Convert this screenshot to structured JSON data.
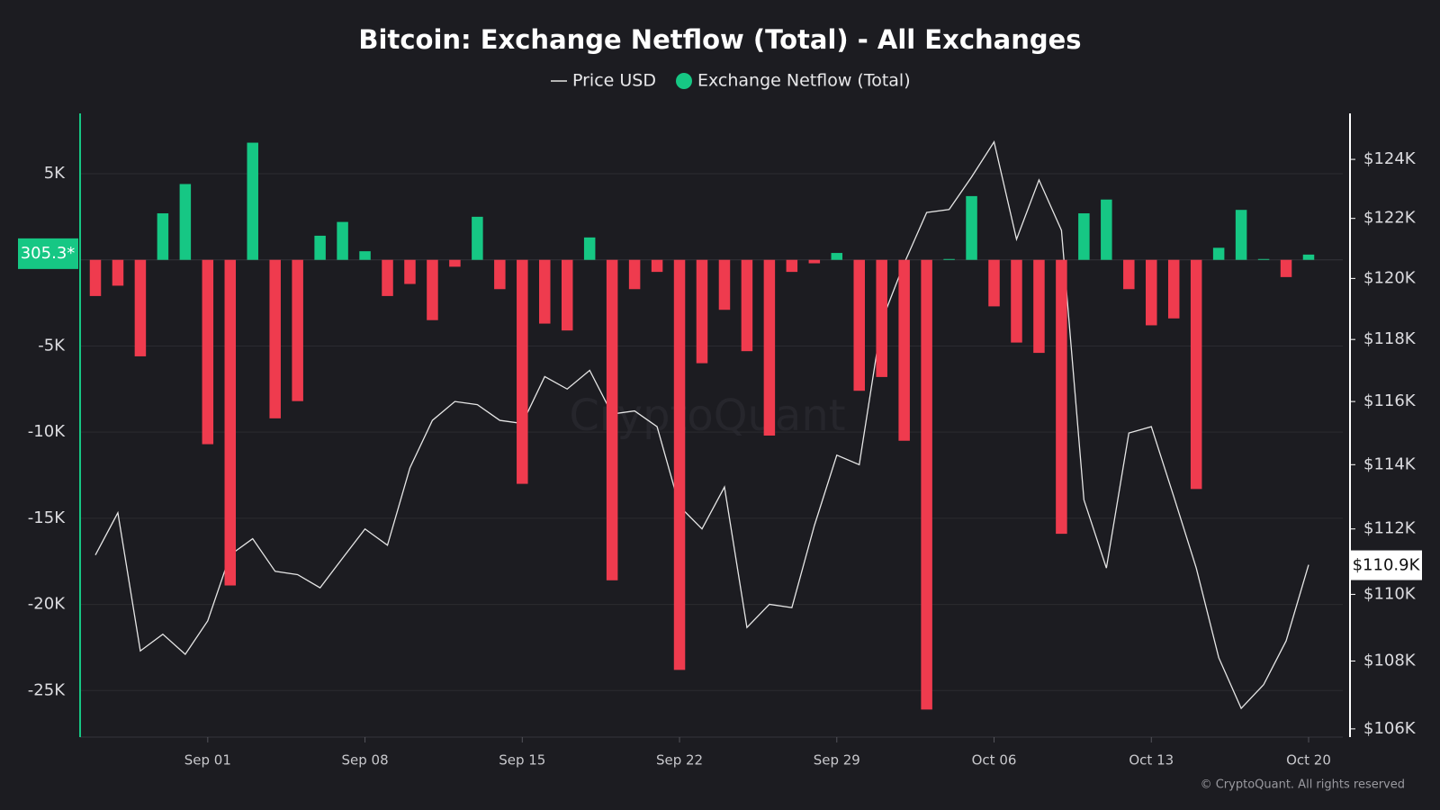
{
  "chart_data": {
    "type": "bar",
    "title": "Bitcoin: Exchange Netflow (Total) - All Exchanges",
    "watermark": "CryptoQuant",
    "credit": "© CryptoQuant. All rights reserved",
    "categories": [
      null,
      null,
      null,
      null,
      null,
      "Sep 01",
      null,
      null,
      null,
      null,
      null,
      null,
      "Sep 08",
      null,
      null,
      null,
      null,
      null,
      null,
      "Sep 15",
      null,
      null,
      null,
      null,
      null,
      null,
      "Sep 22",
      null,
      null,
      null,
      null,
      null,
      null,
      "Sep 29",
      null,
      null,
      null,
      null,
      null,
      null,
      "Oct 06",
      null,
      null,
      null,
      null,
      null,
      null,
      "Oct 13",
      null,
      null,
      null,
      null,
      null,
      null,
      "Oct 20"
    ],
    "ylim": [
      -27700,
      8500
    ],
    "yticks": [
      {
        "value": 5000,
        "label": "5K"
      },
      {
        "value": -5000,
        "label": "-5K"
      },
      {
        "value": -10000,
        "label": "-10K"
      },
      {
        "value": -15000,
        "label": "-15K"
      },
      {
        "value": -20000,
        "label": "-20K"
      },
      {
        "value": -25000,
        "label": "-25K"
      }
    ],
    "y2lim": [
      105760,
      125580
    ],
    "y2_log": true,
    "y2ticks": [
      {
        "value": 124000,
        "label": "$124K"
      },
      {
        "value": 122000,
        "label": "$122K"
      },
      {
        "value": 120000,
        "label": "$120K"
      },
      {
        "value": 118000,
        "label": "$118K"
      },
      {
        "value": 116000,
        "label": "$116K"
      },
      {
        "value": 114000,
        "label": "$114K"
      },
      {
        "value": 112000,
        "label": "$112K"
      },
      {
        "value": 110000,
        "label": "$110K"
      },
      {
        "value": 108000,
        "label": "$108K"
      },
      {
        "value": 106000,
        "label": "$106K"
      }
    ],
    "grid": true,
    "series": [
      {
        "name": "Price USD",
        "type": "line",
        "axis": "y2",
        "color": "#e6e6e6",
        "values": [
          111200,
          112500,
          108300,
          108800,
          108200,
          109200,
          111200,
          111700,
          110700,
          110600,
          110200,
          111100,
          112000,
          111500,
          113900,
          115400,
          116000,
          115900,
          115400,
          115300,
          116800,
          116400,
          117000,
          115600,
          115700,
          115200,
          112700,
          112000,
          113300,
          109000,
          109700,
          109600,
          112100,
          114300,
          114000,
          118600,
          120500,
          122200,
          122300,
          123400,
          124600,
          121300,
          123300,
          121600,
          112900,
          110800,
          115000,
          115200,
          113000,
          110800,
          108100,
          106600,
          107300,
          108600,
          110900
        ],
        "value_labels": [
          null,
          null,
          null,
          null,
          null,
          null,
          null,
          null,
          null,
          null,
          null,
          null,
          null,
          null,
          null,
          null,
          null,
          null,
          null,
          null,
          null,
          null,
          null,
          null,
          null,
          null,
          null,
          null,
          null,
          null,
          null,
          null,
          null,
          null,
          null,
          null,
          null,
          null,
          null,
          null,
          null,
          null,
          null,
          null,
          null,
          null,
          null,
          null,
          null,
          null,
          null,
          null,
          null,
          null,
          "$110.9K"
        ]
      },
      {
        "name": "Exchange Netflow (Total)",
        "type": "bar",
        "color": "#16c784",
        "negative_color": "#ef3b4e",
        "values": [
          -2100,
          -1500,
          -5600,
          2700,
          4400,
          -10700,
          -18900,
          6800,
          -9200,
          -8200,
          1400,
          2200,
          500,
          -2100,
          -1400,
          -3500,
          -400,
          2500,
          -1700,
          -13000,
          -3700,
          -4100,
          1300,
          -18600,
          -1700,
          -700,
          -23800,
          -6000,
          -2900,
          -5300,
          -10200,
          -700,
          -200,
          400,
          -7600,
          -6800,
          -10500,
          -26100,
          50,
          3700,
          -2700,
          -4800,
          -5400,
          -15900,
          2700,
          3500,
          -1700,
          -3800,
          -3400,
          -13300,
          700,
          2900,
          50,
          -1000,
          305.3
        ],
        "value_labels": [
          null,
          null,
          null,
          null,
          null,
          null,
          null,
          null,
          null,
          null,
          null,
          null,
          null,
          null,
          null,
          null,
          null,
          null,
          null,
          null,
          null,
          null,
          null,
          null,
          null,
          null,
          null,
          null,
          null,
          null,
          null,
          null,
          null,
          null,
          null,
          null,
          null,
          null,
          null,
          null,
          null,
          null,
          null,
          null,
          null,
          null,
          null,
          null,
          null,
          null,
          null,
          null,
          null,
          null,
          "305.3*"
        ]
      }
    ]
  }
}
